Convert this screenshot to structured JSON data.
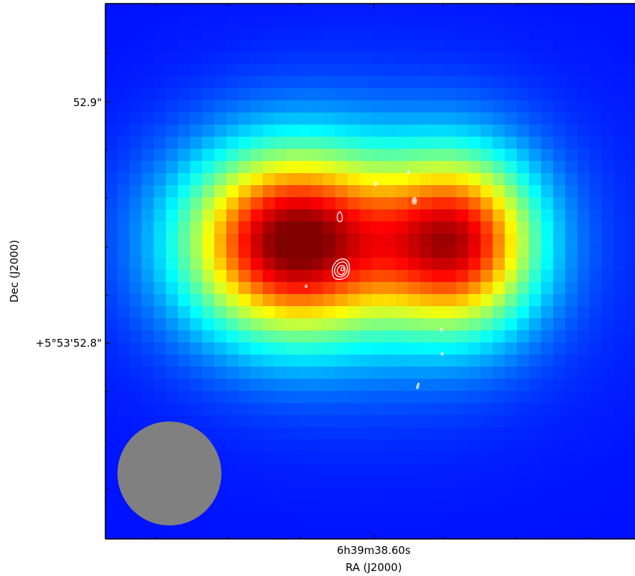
{
  "chart_data": {
    "type": "heatmap",
    "title": "",
    "xlabel": "RA (J2000)",
    "ylabel": "Dec (J2000)",
    "x_tick_labels": [
      "6h39m38.60s"
    ],
    "y_tick_labels": [
      "52.9\"",
      "+5°53'52.8\""
    ],
    "colormap": "jet",
    "grid": false,
    "contour_color": "#ffffff",
    "beam_color": "#808080",
    "beam_location": "bottom-left"
  }
}
